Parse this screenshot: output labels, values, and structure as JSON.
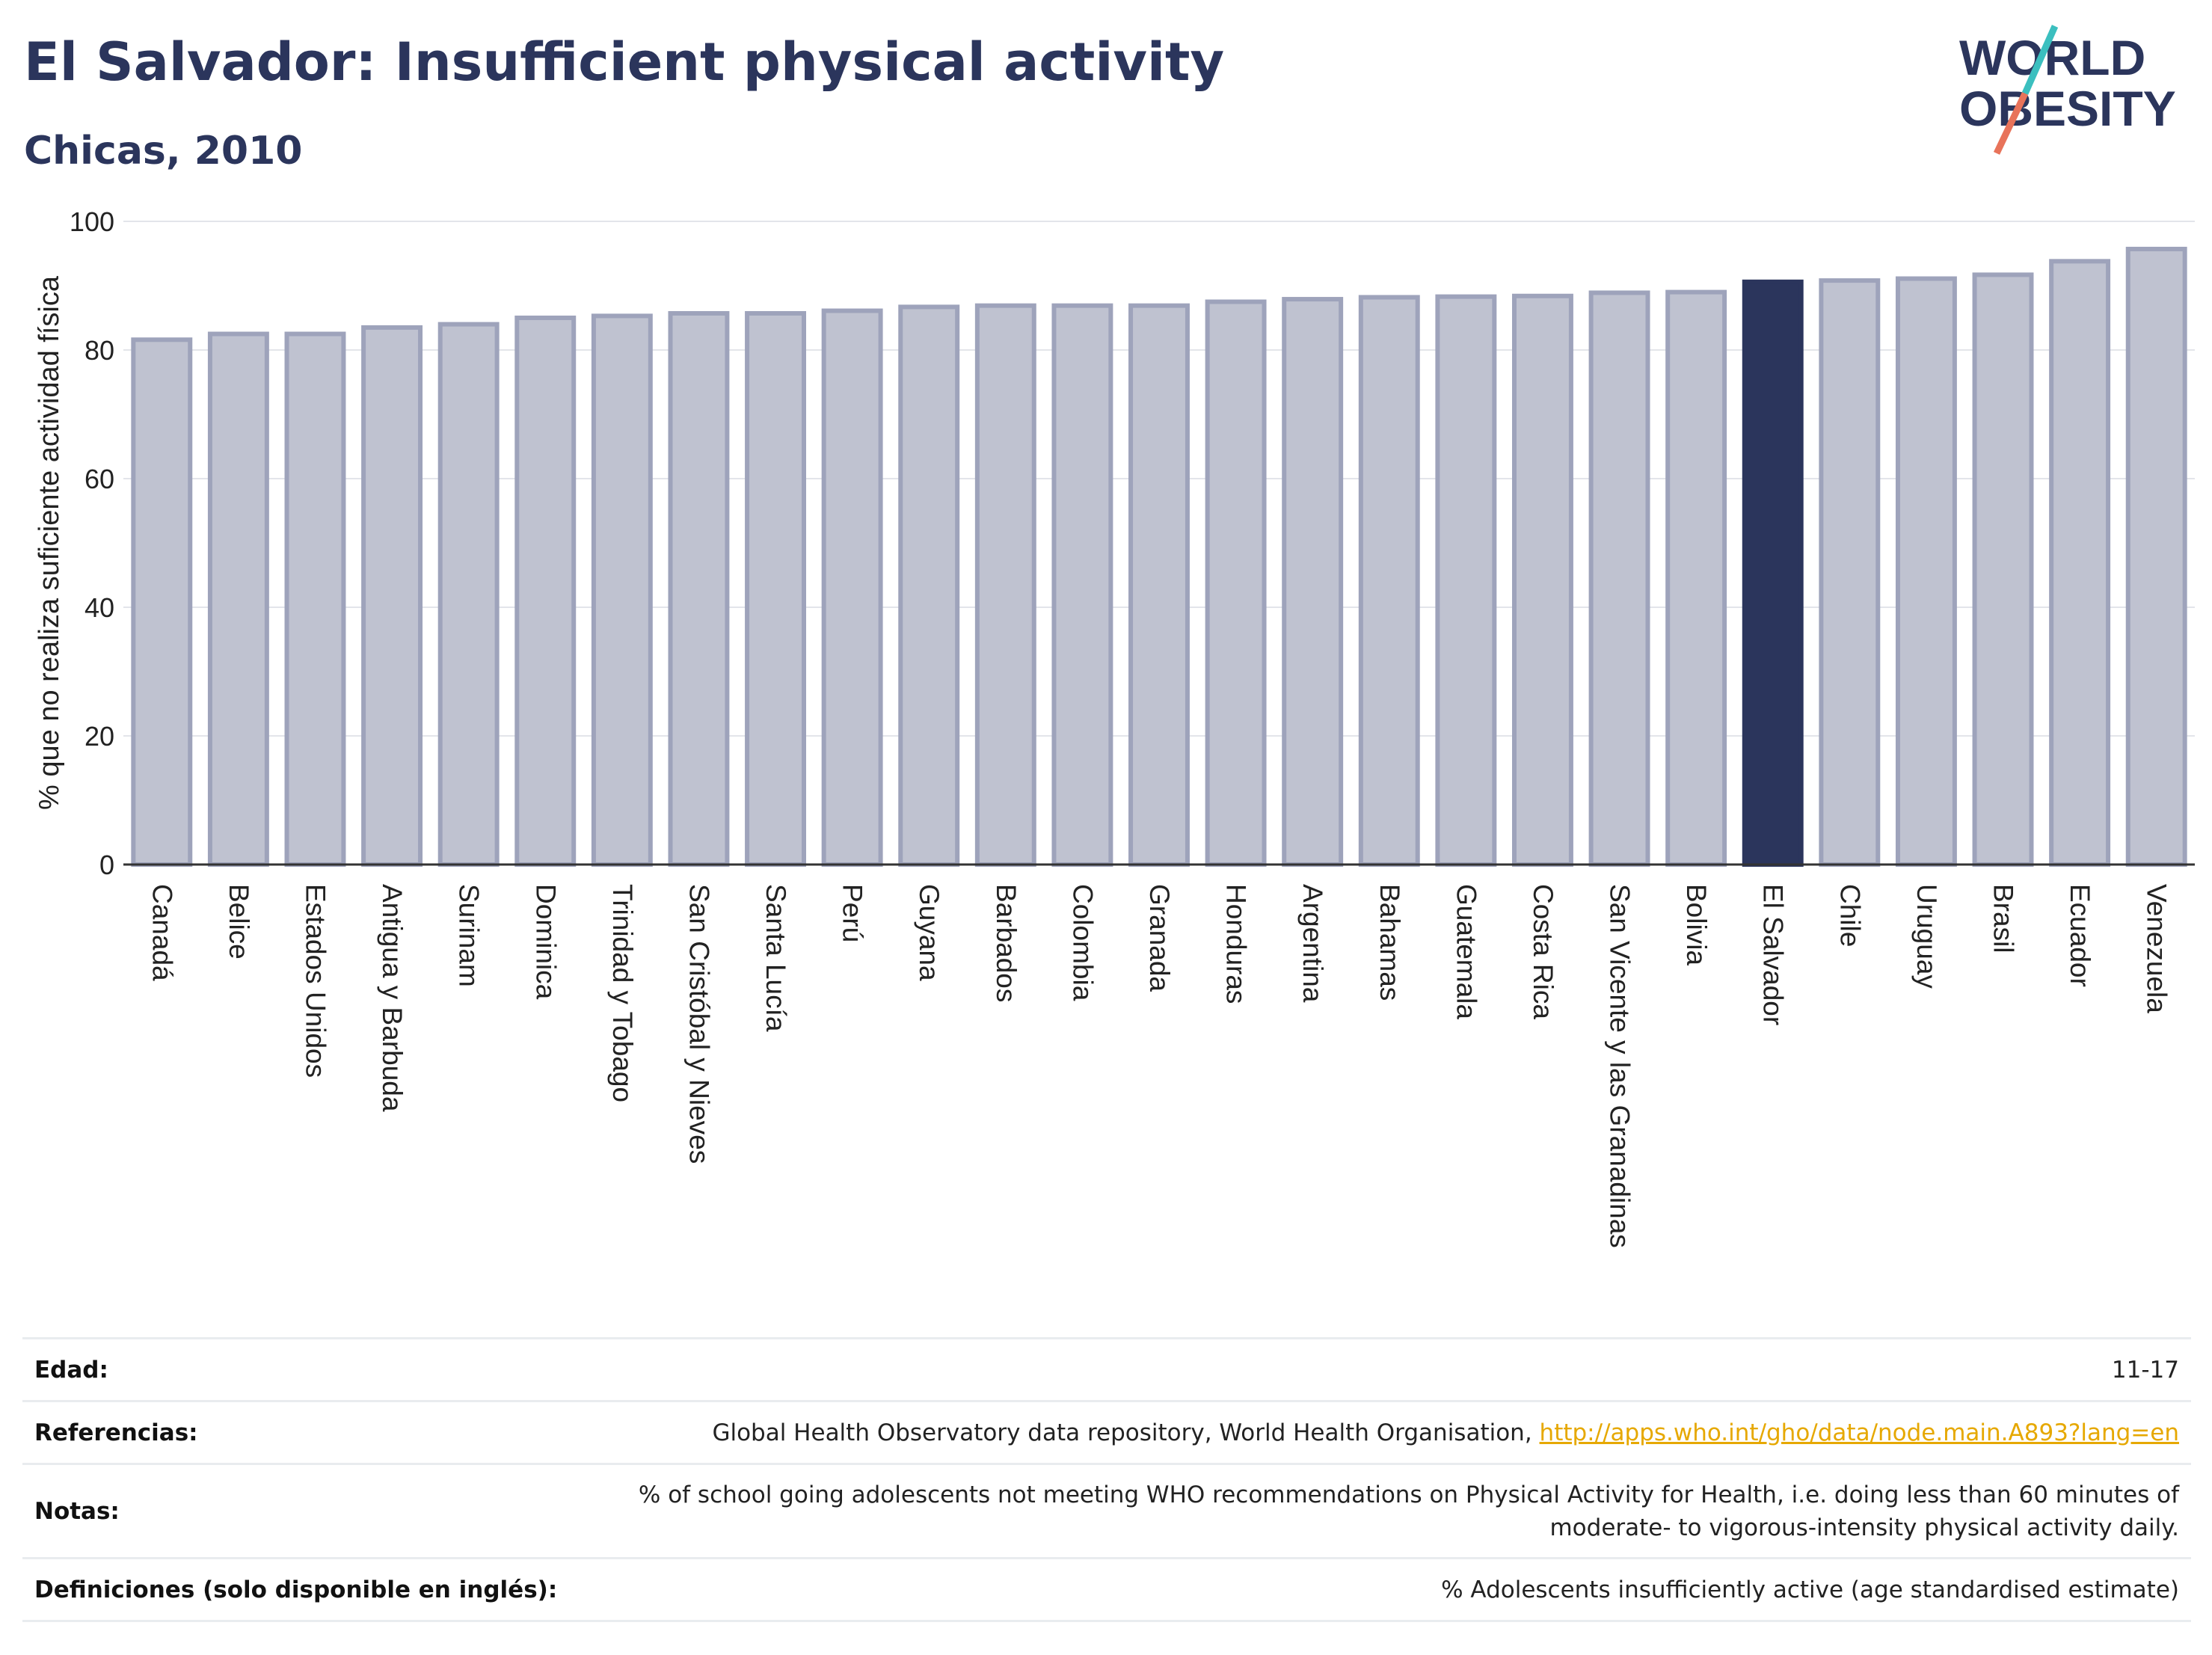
{
  "header": {
    "title": "El Salvador: Insufficient physical activity",
    "subtitle": "Chicas, 2010"
  },
  "logo": {
    "line1": "WORLD",
    "line2": "OBESITY",
    "slash_colors": [
      "#3bbfbf",
      "#e8735a"
    ]
  },
  "colors": {
    "bar": "#bfc2d0",
    "bar_border": "#9ea3bb",
    "highlight": "#2b355c",
    "grid": "#e3e5ea",
    "axis": "#333333",
    "link": "#e6a800"
  },
  "chart_data": {
    "type": "bar",
    "title": "El Salvador: Insufficient physical activity",
    "subtitle": "Chicas, 2010",
    "xlabel": "",
    "ylabel": "% que no realiza suficiente actividad física",
    "ylim": [
      0,
      100
    ],
    "yticks": [
      0,
      20,
      40,
      60,
      80,
      100
    ],
    "grid": true,
    "highlight": "El Salvador",
    "categories": [
      "Canadá",
      "Belice",
      "Estados Unidos",
      "Antigua y Barbuda",
      "Surinam",
      "Dominica",
      "Trinidad y Tobago",
      "San Cristóbal y Nieves",
      "Santa Lucía",
      "Perú",
      "Guyana",
      "Barbados",
      "Colombia",
      "Granada",
      "Honduras",
      "Argentina",
      "Bahamas",
      "Guatemala",
      "Costa Rica",
      "San Vicente y las Granadinas",
      "Bolivia",
      "El Salvador",
      "Chile",
      "Uruguay",
      "Brasil",
      "Ecuador",
      "Venezuela"
    ],
    "values": [
      81.6,
      82.5,
      82.5,
      83.5,
      84.0,
      85.0,
      85.3,
      85.7,
      85.7,
      86.1,
      86.7,
      86.9,
      86.9,
      86.9,
      87.5,
      87.9,
      88.2,
      88.3,
      88.4,
      88.9,
      89.0,
      90.6,
      90.8,
      91.1,
      91.7,
      93.8,
      95.7
    ]
  },
  "info": {
    "rows": [
      {
        "label": "Edad:",
        "value": "11-17"
      },
      {
        "label": "Referencias:",
        "value": "Global Health Observatory data repository, World Health Organisation, ",
        "link": "http://apps.who.int/gho/data/node.main.A893?lang=en"
      },
      {
        "label": "Notas:",
        "value": "% of school going adolescents not meeting WHO recommendations on Physical Activity for Health, i.e. doing less than 60 minutes of moderate- to vigorous-intensity physical activity daily."
      },
      {
        "label": "Definiciones (solo disponible en inglés):",
        "value": "% Adolescents insufficiently active (age standardised estimate)"
      }
    ]
  }
}
